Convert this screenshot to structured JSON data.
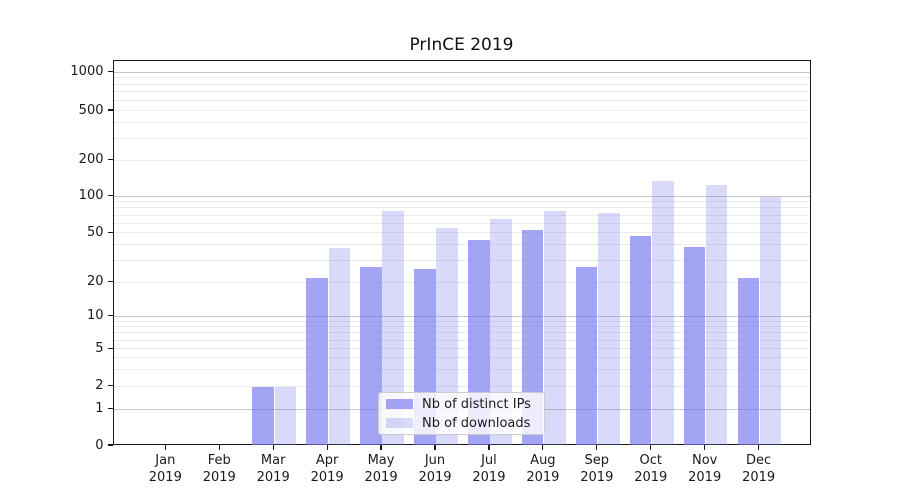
{
  "colors": {
    "ips_bar": "rgba(119,119,238,0.67)",
    "downloads_bar": "rgba(119,119,238,0.28)",
    "grid_major": "#c6c6c6",
    "grid_minor": "#ebebeb",
    "spine": "#1a1a1a"
  },
  "chart_data": {
    "type": "bar",
    "title": "PrInCE 2019",
    "xlabel": "",
    "ylabel": "",
    "yscale": "symlog",
    "grid": true,
    "legend_position": "lower center",
    "categories": [
      "Jan 2019",
      "Feb 2019",
      "Mar 2019",
      "Apr 2019",
      "May 2019",
      "Jun 2019",
      "Jul 2019",
      "Aug 2019",
      "Sep 2019",
      "Oct 2019",
      "Nov 2019",
      "Dec 2019"
    ],
    "series": [
      {
        "name": "Nb of distinct IPs",
        "values": [
          0,
          0,
          2,
          22,
          27,
          26,
          44,
          53,
          27,
          48,
          39,
          22
        ]
      },
      {
        "name": "Nb of downloads",
        "values": [
          0,
          0,
          2,
          38,
          76,
          55,
          65,
          77,
          73,
          135,
          124,
          100
        ]
      }
    ],
    "y_ticks": [
      0,
      1,
      2,
      5,
      10,
      20,
      50,
      100,
      200,
      500,
      1000
    ],
    "ylim": [
      0,
      1250
    ]
  }
}
